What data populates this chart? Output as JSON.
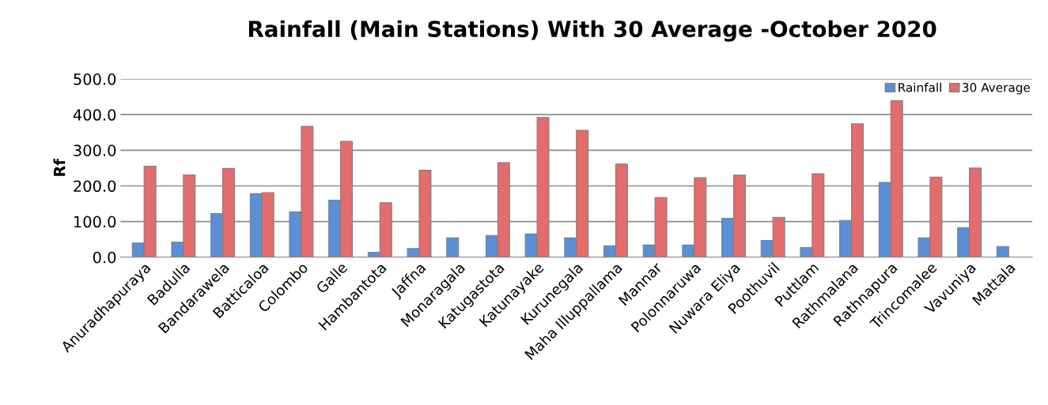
{
  "chart_data": {
    "type": "bar",
    "title": "Rainfall (Main Stations) With 30 Average -October 2020",
    "ylabel": "Rf",
    "categories": [
      "Anuradhapuraya",
      "Badulla",
      "Bandarawela",
      "Batticaloa",
      "Colombo",
      "Galle",
      "Hambantota",
      "Jaffna",
      "Monaragala",
      "Katugastota",
      "Katunayake",
      "Kurunegala",
      "Maha Illuppallama",
      "Mannar",
      "Polonnaruwa",
      "Nuwara Eliya",
      "Poothuvil",
      "Puttlam",
      "Rathmalana",
      "Rathnapura",
      "Trincomalee",
      "Vavuniya",
      "Mattala"
    ],
    "series": [
      {
        "name": "Rainfall",
        "color": "#5b8fd6",
        "values": [
          40,
          42,
          122,
          178,
          127,
          160,
          14,
          24,
          54,
          61,
          65,
          54,
          32,
          34,
          34,
          109,
          47,
          27,
          103,
          210,
          54,
          83,
          30
        ]
      },
      {
        "name": "30 Average",
        "color": "#e46c6c",
        "values": [
          255,
          231,
          249,
          181,
          367,
          325,
          153,
          244,
          null,
          265,
          392,
          356,
          261,
          167,
          223,
          230,
          112,
          234,
          374,
          439,
          225,
          250,
          null
        ]
      }
    ],
    "ylim": [
      0,
      500
    ],
    "yticks": [
      {
        "value": 0,
        "label": "0.0"
      },
      {
        "value": 100,
        "label": "100.0"
      },
      {
        "value": 200,
        "label": "200.0"
      },
      {
        "value": 300,
        "label": "300.0"
      },
      {
        "value": 400,
        "label": "400.0"
      },
      {
        "value": 500,
        "label": "500.0"
      }
    ],
    "grid": "y",
    "legend": "top right"
  }
}
